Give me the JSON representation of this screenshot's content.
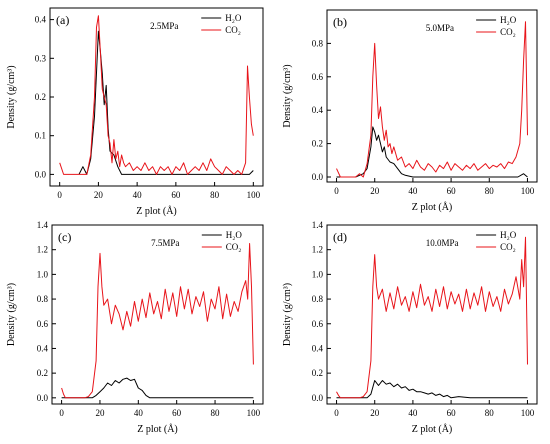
{
  "figure": {
    "xlabel": "Z plot (Å)",
    "ylabel": "Density  (g/cm³)"
  },
  "colors": {
    "H2O": "#000000",
    "CO2": "#e8141a"
  },
  "chart_data": [
    {
      "type": "line",
      "panel_label": "(a)",
      "annotation": "2.5MPa",
      "xlabel": "Z plot (Å)",
      "ylabel": "Density  (g/cm³)",
      "xlim": [
        -5,
        105
      ],
      "ylim": [
        -0.03,
        0.43
      ],
      "xticks": [
        "0",
        "20",
        "40",
        "60",
        "80",
        "100"
      ],
      "yticks": [
        "0.0",
        "0.1",
        "0.2",
        "0.3",
        "0.4"
      ],
      "series": [
        {
          "name": "H₂O",
          "x": [
            10,
            12,
            14,
            16,
            18,
            20,
            21,
            22,
            23,
            24,
            25,
            26,
            28,
            30,
            32,
            34,
            40,
            50,
            60,
            70,
            80,
            90,
            95,
            98,
            100
          ],
          "y": [
            0.0,
            0.02,
            0.0,
            0.04,
            0.15,
            0.37,
            0.32,
            0.26,
            0.18,
            0.23,
            0.12,
            0.06,
            0.05,
            0.02,
            0.0,
            0.0,
            0.0,
            0.0,
            0.0,
            0.0,
            0.0,
            0.0,
            0.0,
            0.0,
            0.01
          ]
        },
        {
          "name": "CO₂",
          "x": [
            0,
            2,
            4,
            6,
            8,
            10,
            12,
            14,
            16,
            18,
            19,
            20,
            21,
            22,
            23,
            24,
            25,
            26,
            27,
            28,
            29,
            30,
            31,
            32,
            33,
            34,
            36,
            38,
            40,
            42,
            44,
            46,
            48,
            50,
            52,
            54,
            56,
            58,
            60,
            62,
            64,
            66,
            68,
            70,
            72,
            74,
            76,
            78,
            80,
            82,
            84,
            86,
            88,
            90,
            92,
            94,
            96,
            97,
            98,
            99,
            100
          ],
          "y": [
            0.03,
            0.0,
            0.0,
            0.0,
            0.0,
            0.0,
            0.0,
            0.0,
            0.05,
            0.2,
            0.38,
            0.41,
            0.32,
            0.22,
            0.2,
            0.18,
            0.1,
            0.08,
            0.03,
            0.09,
            0.04,
            0.06,
            0.02,
            0.05,
            0.03,
            0.02,
            0.03,
            0.01,
            0.02,
            0.01,
            0.03,
            0.01,
            0.02,
            0.0,
            0.02,
            0.01,
            0.02,
            0.0,
            0.02,
            0.01,
            0.03,
            0.0,
            0.01,
            0.02,
            0.01,
            0.03,
            0.01,
            0.04,
            0.02,
            0.01,
            0.0,
            0.02,
            0.01,
            0.0,
            0.01,
            0.0,
            0.03,
            0.28,
            0.2,
            0.13,
            0.1
          ]
        }
      ]
    },
    {
      "type": "line",
      "panel_label": "(b)",
      "annotation": "5.0MPa",
      "xlabel": "Z plot (Å)",
      "ylabel": "Density  (g/cm³)",
      "xlim": [
        -5,
        105
      ],
      "ylim": [
        -0.03,
        1.0
      ],
      "xticks": [
        "0",
        "20",
        "40",
        "60",
        "80",
        "100"
      ],
      "yticks": [
        "0.0",
        "0.2",
        "0.4",
        "0.6",
        "0.8"
      ],
      "series": [
        {
          "name": "H₂O",
          "x": [
            0,
            10,
            14,
            16,
            18,
            19,
            20,
            21,
            22,
            23,
            24,
            25,
            26,
            28,
            30,
            32,
            34,
            36,
            40,
            50,
            60,
            70,
            80,
            90,
            95,
            98,
            100
          ],
          "y": [
            0.0,
            0.0,
            0.02,
            0.05,
            0.18,
            0.3,
            0.27,
            0.22,
            0.25,
            0.2,
            0.15,
            0.18,
            0.12,
            0.09,
            0.08,
            0.05,
            0.02,
            0.01,
            0.0,
            0.0,
            0.0,
            0.0,
            0.0,
            0.0,
            0.0,
            0.02,
            0.0
          ]
        },
        {
          "name": "CO₂",
          "x": [
            0,
            2,
            4,
            6,
            8,
            10,
            12,
            14,
            16,
            18,
            19,
            20,
            21,
            22,
            23,
            24,
            25,
            26,
            27,
            28,
            29,
            30,
            32,
            34,
            36,
            38,
            40,
            42,
            44,
            46,
            48,
            50,
            52,
            54,
            56,
            58,
            60,
            62,
            64,
            66,
            68,
            70,
            72,
            74,
            76,
            78,
            80,
            82,
            84,
            86,
            88,
            90,
            92,
            94,
            96,
            97,
            98,
            99,
            100
          ],
          "y": [
            0.05,
            0.0,
            0.0,
            0.0,
            0.0,
            0.0,
            0.02,
            0.0,
            0.08,
            0.25,
            0.6,
            0.8,
            0.55,
            0.35,
            0.42,
            0.3,
            0.22,
            0.28,
            0.18,
            0.2,
            0.14,
            0.18,
            0.1,
            0.12,
            0.06,
            0.08,
            0.05,
            0.1,
            0.06,
            0.04,
            0.08,
            0.06,
            0.03,
            0.07,
            0.05,
            0.09,
            0.04,
            0.08,
            0.06,
            0.04,
            0.07,
            0.05,
            0.08,
            0.04,
            0.06,
            0.08,
            0.05,
            0.07,
            0.06,
            0.08,
            0.05,
            0.09,
            0.08,
            0.12,
            0.2,
            0.4,
            0.7,
            0.93,
            0.25
          ]
        }
      ]
    },
    {
      "type": "line",
      "panel_label": "(c)",
      "annotation": "7.5MPa",
      "xlabel": "Z plot (Å)",
      "ylabel": "Density  (g/cm³)",
      "xlim": [
        -5,
        105
      ],
      "ylim": [
        -0.05,
        1.4
      ],
      "xticks": [
        "0",
        "20",
        "40",
        "60",
        "80",
        "100"
      ],
      "yticks": [
        "0.0",
        "0.2",
        "0.4",
        "0.6",
        "0.8",
        "1.0",
        "1.2",
        "1.4"
      ],
      "series": [
        {
          "name": "H₂O",
          "x": [
            0,
            10,
            16,
            18,
            20,
            22,
            24,
            26,
            28,
            30,
            32,
            34,
            36,
            38,
            40,
            42,
            44,
            46,
            50,
            60,
            70,
            80,
            90,
            100
          ],
          "y": [
            0.0,
            0.0,
            0.0,
            0.02,
            0.05,
            0.08,
            0.12,
            0.1,
            0.14,
            0.12,
            0.15,
            0.16,
            0.14,
            0.15,
            0.08,
            0.06,
            0.02,
            0.0,
            0.0,
            0.0,
            0.0,
            0.0,
            0.0,
            0.0
          ]
        },
        {
          "name": "CO₂",
          "x": [
            0,
            1,
            2,
            4,
            6,
            8,
            10,
            12,
            14,
            16,
            18,
            19,
            20,
            21,
            22,
            24,
            26,
            28,
            30,
            32,
            34,
            36,
            38,
            40,
            42,
            44,
            46,
            48,
            50,
            52,
            54,
            56,
            58,
            60,
            62,
            64,
            66,
            68,
            70,
            72,
            74,
            76,
            78,
            80,
            82,
            84,
            86,
            88,
            90,
            92,
            94,
            96,
            97,
            98,
            99,
            100
          ],
          "y": [
            0.08,
            0.03,
            0.0,
            0.0,
            0.0,
            0.0,
            0.0,
            0.0,
            0.01,
            0.05,
            0.3,
            0.9,
            1.17,
            0.9,
            0.75,
            0.8,
            0.6,
            0.75,
            0.68,
            0.55,
            0.7,
            0.58,
            0.78,
            0.62,
            0.8,
            0.65,
            0.85,
            0.68,
            0.78,
            0.64,
            0.88,
            0.7,
            0.85,
            0.66,
            0.9,
            0.72,
            0.88,
            0.68,
            0.82,
            0.74,
            0.86,
            0.62,
            0.8,
            0.72,
            0.9,
            0.64,
            0.84,
            0.66,
            0.78,
            0.7,
            0.86,
            0.95,
            0.8,
            1.25,
            0.9,
            0.27
          ]
        }
      ]
    },
    {
      "type": "line",
      "panel_label": "(d)",
      "annotation": "10.0MPa",
      "xlabel": "Z plot (Å)",
      "ylabel": "Density  (g/cm³)",
      "xlim": [
        -5,
        105
      ],
      "ylim": [
        -0.05,
        1.4
      ],
      "xticks": [
        "0",
        "20",
        "40",
        "60",
        "80",
        "100"
      ],
      "yticks": [
        "0.0",
        "0.2",
        "0.4",
        "0.6",
        "0.8",
        "1.0",
        "1.2",
        "1.4"
      ],
      "series": [
        {
          "name": "H₂O",
          "x": [
            0,
            10,
            16,
            18,
            20,
            22,
            24,
            26,
            28,
            30,
            32,
            34,
            36,
            38,
            40,
            42,
            44,
            46,
            48,
            50,
            52,
            54,
            56,
            58,
            60,
            64,
            70,
            80,
            90,
            100
          ],
          "y": [
            0.0,
            0.0,
            0.0,
            0.03,
            0.14,
            0.1,
            0.14,
            0.11,
            0.12,
            0.09,
            0.11,
            0.08,
            0.09,
            0.06,
            0.07,
            0.05,
            0.05,
            0.04,
            0.03,
            0.04,
            0.02,
            0.03,
            0.01,
            0.02,
            0.0,
            0.01,
            0.0,
            0.0,
            0.0,
            0.0
          ]
        },
        {
          "name": "CO₂",
          "x": [
            0,
            1,
            2,
            4,
            6,
            8,
            10,
            12,
            14,
            16,
            18,
            19,
            20,
            21,
            22,
            24,
            26,
            28,
            30,
            32,
            34,
            36,
            38,
            40,
            42,
            44,
            46,
            48,
            50,
            52,
            54,
            56,
            58,
            60,
            62,
            64,
            66,
            68,
            70,
            72,
            74,
            76,
            78,
            80,
            82,
            84,
            86,
            88,
            90,
            92,
            94,
            96,
            97,
            98,
            99,
            100
          ],
          "y": [
            0.05,
            0.02,
            0.0,
            0.0,
            0.0,
            0.0,
            0.0,
            0.0,
            0.01,
            0.05,
            0.3,
            0.9,
            1.16,
            0.9,
            0.8,
            0.88,
            0.7,
            0.85,
            0.72,
            0.9,
            0.75,
            0.82,
            0.7,
            0.86,
            0.73,
            0.92,
            0.75,
            0.82,
            0.7,
            0.88,
            0.74,
            0.9,
            0.72,
            0.86,
            0.76,
            0.84,
            0.7,
            0.88,
            0.72,
            0.85,
            0.75,
            0.9,
            0.7,
            0.86,
            0.74,
            0.82,
            0.7,
            0.88,
            0.76,
            0.84,
            0.98,
            0.8,
            1.12,
            0.9,
            1.3,
            0.27
          ]
        }
      ]
    }
  ]
}
